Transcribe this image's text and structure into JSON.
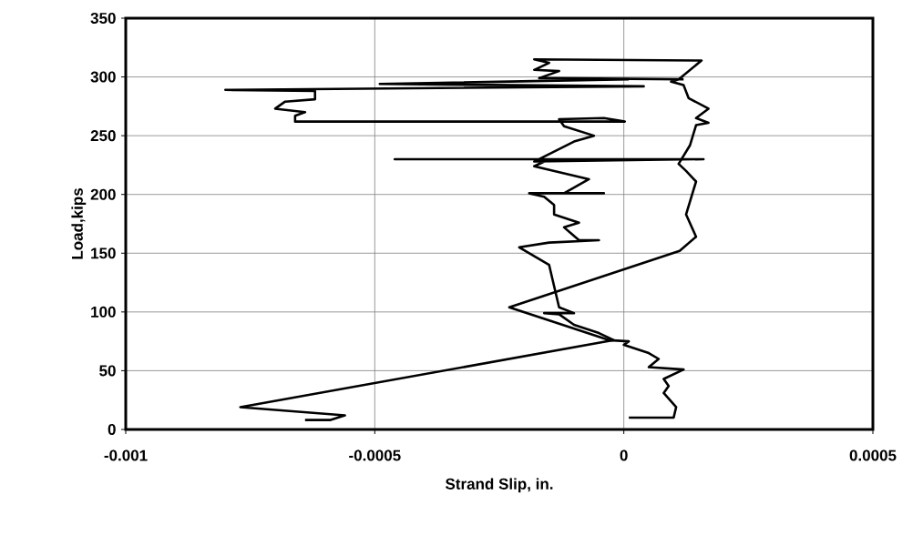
{
  "chart_data": {
    "type": "line",
    "xlabel": "Strand Slip, in.",
    "ylabel": "Load,kips",
    "xlim": [
      -0.001,
      0.0005
    ],
    "ylim": [
      0,
      350
    ],
    "xticks": [
      -0.001,
      -0.0005,
      0,
      0.0005
    ],
    "yticks": [
      0,
      50,
      100,
      150,
      200,
      250,
      300,
      350
    ],
    "grid": true,
    "series": [
      {
        "color": "#000000",
        "x": [
          1e-05,
          0.0001,
          0.000105,
          8e-05,
          9e-05,
          8e-05,
          0.00012,
          5e-05,
          7e-05,
          5e-05,
          0.0,
          1e-05,
          -3e-05,
          -0.00023,
          0.000112,
          0.000145,
          0.000125,
          0.000145,
          0.000125,
          0.00011,
          0.000133,
          0.000145,
          0.00017,
          0.000145,
          0.00017,
          0.00013,
          0.00012,
          9.5e-05,
          0.00011,
          0.000156,
          -0.00018,
          -0.00015,
          -0.00018,
          -0.00013,
          -0.00017,
          0.00012
        ],
        "values": [
          10,
          10,
          19,
          31,
          37,
          43,
          51,
          53,
          60,
          65,
          72,
          75,
          76,
          104,
          152,
          164,
          183,
          211,
          220,
          226,
          242,
          259,
          261,
          265,
          273,
          282,
          293,
          296,
          298,
          314,
          315,
          312,
          306,
          305,
          299,
          298
        ]
      },
      {
        "color": "#000000",
        "x": [
          -0.00064,
          -0.00059,
          -0.00056,
          -0.00077,
          -2e-05,
          -5e-05,
          -0.0001,
          -0.00013,
          -0.00016,
          -0.0001,
          -0.00013,
          -0.00015,
          -0.00021,
          -0.00015,
          -5e-05,
          -9e-05,
          -0.00012,
          -9e-05,
          -0.00014,
          -0.00014,
          -0.00016,
          -0.00019,
          -4e-05,
          -0.00012,
          -7e-05,
          -0.00018,
          -0.00015,
          -0.00046,
          0.00016,
          -0.00018,
          -0.0001,
          -6e-05,
          -0.00012,
          -0.00013,
          -4e-05,
          2e-06,
          -0.00066,
          -0.00066,
          -0.00064,
          -0.0007,
          -0.00068,
          -0.00062,
          -0.00062,
          -0.0008,
          4e-05,
          -0.00049,
          1e-05
        ],
        "values": [
          8,
          8,
          12,
          19,
          76,
          82,
          89,
          98,
          99,
          99,
          104,
          140,
          155,
          159,
          161,
          161,
          172,
          176,
          183,
          191,
          198,
          201,
          201,
          201,
          213,
          224,
          230,
          230,
          230,
          228,
          245,
          250,
          258,
          264,
          265,
          262,
          262,
          267,
          270,
          273,
          279,
          281,
          288,
          289,
          292,
          294,
          298
        ]
      }
    ]
  }
}
